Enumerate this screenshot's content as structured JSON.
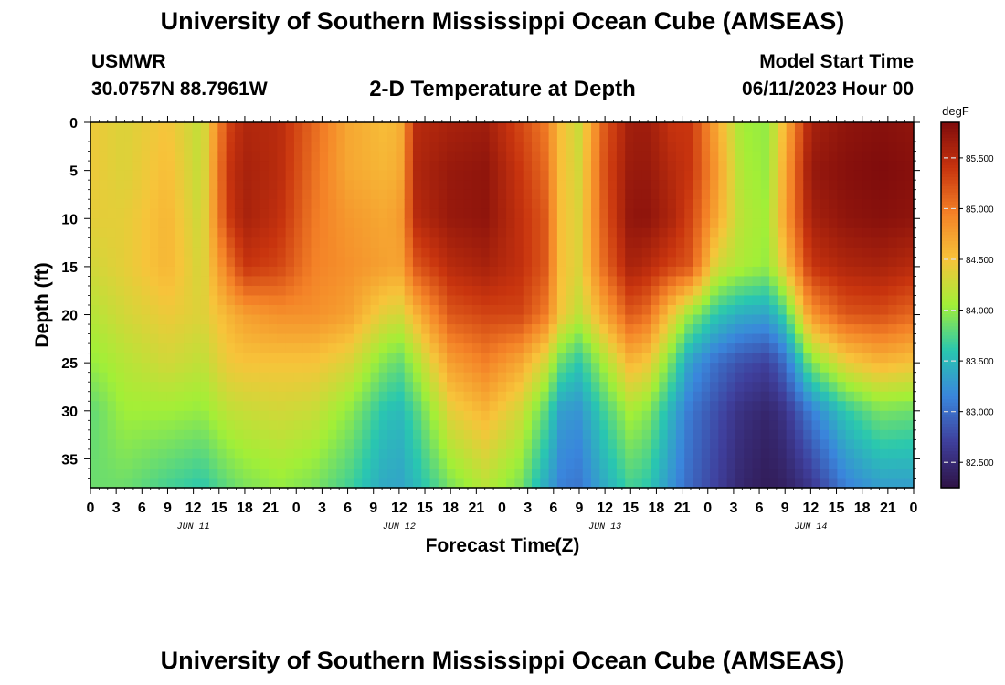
{
  "header": {
    "title": "University of Southern Mississippi Ocean Cube (AMSEAS)",
    "station": "USMWR",
    "coords": "30.0757N  88.7961W",
    "plot_title": "2-D Temperature at Depth",
    "model_start_label": "Model Start Time",
    "model_start_value": "06/11/2023 Hour 00"
  },
  "footer": {
    "title": "University of Southern Mississippi Ocean Cube (AMSEAS)"
  },
  "colors": {
    "colormap": [
      "#2e1245",
      "#3f3f9c",
      "#3a86dc",
      "#29c7b0",
      "#a2ef37",
      "#f7c43a",
      "#f48227",
      "#c8340e",
      "#7f0c0c"
    ]
  },
  "chart_data": {
    "type": "heatmap",
    "xlabel": "Forecast Time(Z)",
    "ylabel": "Depth (ft)",
    "x_tick_labels": [
      "0",
      "3",
      "6",
      "9",
      "12",
      "15",
      "18",
      "21",
      "0",
      "3",
      "6",
      "9",
      "12",
      "15",
      "18",
      "21",
      "0",
      "3",
      "6",
      "9",
      "12",
      "15",
      "18",
      "21",
      "0",
      "3",
      "6",
      "9",
      "12",
      "15",
      "18",
      "21",
      "0"
    ],
    "day_labels": [
      {
        "label": "JUN 11",
        "hour": 12
      },
      {
        "label": "JUN 12",
        "hour": 36
      },
      {
        "label": "JUN 13",
        "hour": 60
      },
      {
        "label": "JUN 14",
        "hour": 84
      }
    ],
    "x_range_hours": [
      0,
      96
    ],
    "y_ticks": [
      0,
      5,
      10,
      15,
      20,
      25,
      30,
      35
    ],
    "y_range_ft": [
      0,
      38
    ],
    "y_inverted": true,
    "colorbar": {
      "unit": "degF",
      "tick_labels": [
        "85.500",
        "85.000",
        "84.500",
        "84.000",
        "83.500",
        "83.000",
        "82.500"
      ],
      "ticks": [
        85.5,
        85.0,
        84.5,
        84.0,
        83.5,
        83.0,
        82.5
      ],
      "range": [
        82.25,
        85.85
      ]
    },
    "profiles": [
      {
        "hour": 0,
        "t": [
          84.45,
          84.45,
          84.4,
          84.3,
          84.15,
          84.0,
          83.8,
          83.85
        ]
      },
      {
        "hour": 4,
        "t": [
          84.35,
          84.35,
          84.4,
          84.4,
          84.3,
          84.15,
          84.05,
          83.85
        ]
      },
      {
        "hour": 9,
        "t": [
          84.5,
          84.55,
          84.6,
          84.6,
          84.45,
          84.3,
          84.05,
          83.7
        ]
      },
      {
        "hour": 13,
        "t": [
          84.2,
          84.2,
          84.25,
          84.3,
          84.35,
          84.2,
          84.0,
          83.6
        ]
      },
      {
        "hour": 16,
        "t": [
          85.3,
          85.4,
          85.35,
          85.0,
          84.6,
          84.45,
          84.2,
          83.8
        ]
      },
      {
        "hour": 18,
        "t": [
          85.55,
          85.6,
          85.6,
          85.4,
          84.75,
          84.5,
          84.25,
          83.9
        ]
      },
      {
        "hour": 22,
        "t": [
          85.5,
          85.5,
          85.45,
          85.3,
          84.85,
          84.5,
          84.3,
          84.0
        ]
      },
      {
        "hour": 26,
        "t": [
          85.1,
          85.05,
          85.0,
          84.95,
          84.85,
          84.5,
          84.25,
          83.9
        ]
      },
      {
        "hour": 30,
        "t": [
          84.7,
          84.7,
          84.8,
          84.85,
          84.75,
          84.35,
          84.0,
          83.7
        ]
      },
      {
        "hour": 34,
        "t": [
          84.55,
          84.6,
          84.7,
          84.75,
          84.4,
          83.95,
          83.6,
          83.4
        ]
      },
      {
        "hour": 36,
        "t": [
          84.6,
          84.65,
          84.75,
          84.7,
          84.3,
          83.8,
          83.5,
          83.35
        ]
      },
      {
        "hour": 38,
        "t": [
          85.5,
          85.55,
          85.5,
          85.2,
          84.6,
          84.1,
          83.75,
          83.5
        ]
      },
      {
        "hour": 42,
        "t": [
          85.6,
          85.7,
          85.7,
          85.5,
          85.2,
          84.75,
          84.4,
          83.9
        ]
      },
      {
        "hour": 46,
        "t": [
          85.65,
          85.75,
          85.75,
          85.6,
          85.3,
          84.95,
          84.6,
          84.15
        ]
      },
      {
        "hour": 50,
        "t": [
          85.3,
          85.4,
          85.45,
          85.45,
          85.3,
          84.7,
          84.3,
          83.9
        ]
      },
      {
        "hour": 53,
        "t": [
          85.0,
          85.1,
          85.2,
          85.2,
          85.0,
          84.3,
          83.8,
          83.4
        ]
      },
      {
        "hour": 55,
        "t": [
          84.5,
          84.5,
          84.5,
          84.5,
          84.45,
          83.8,
          83.3,
          83.1
        ]
      },
      {
        "hour": 57,
        "t": [
          84.25,
          84.3,
          84.35,
          84.35,
          84.2,
          83.6,
          83.25,
          83.05
        ]
      },
      {
        "hour": 60,
        "t": [
          85.2,
          85.25,
          85.2,
          85.1,
          84.7,
          84.1,
          83.7,
          83.4
        ]
      },
      {
        "hour": 63,
        "t": [
          85.65,
          85.7,
          85.75,
          85.6,
          85.2,
          84.6,
          84.1,
          83.7
        ]
      },
      {
        "hour": 65,
        "t": [
          85.65,
          85.7,
          85.75,
          85.5,
          85.05,
          84.45,
          83.95,
          83.6
        ]
      },
      {
        "hour": 68,
        "t": [
          85.4,
          85.5,
          85.55,
          85.3,
          84.4,
          83.8,
          83.4,
          83.2
        ]
      },
      {
        "hour": 70,
        "t": [
          85.4,
          85.4,
          85.3,
          85.2,
          84.0,
          83.3,
          83.05,
          82.95
        ]
      },
      {
        "hour": 73,
        "t": [
          84.7,
          84.8,
          84.7,
          84.3,
          83.6,
          83.0,
          82.8,
          82.7
        ]
      },
      {
        "hour": 76,
        "t": [
          84.05,
          84.1,
          84.15,
          84.1,
          83.4,
          82.8,
          82.55,
          82.45
        ]
      },
      {
        "hour": 79,
        "t": [
          84.0,
          84.0,
          84.05,
          84.0,
          83.35,
          82.7,
          82.45,
          82.35
        ]
      },
      {
        "hour": 81,
        "t": [
          84.6,
          84.7,
          84.75,
          84.5,
          83.7,
          83.0,
          82.6,
          82.4
        ]
      },
      {
        "hour": 84,
        "t": [
          85.6,
          85.7,
          85.6,
          85.4,
          84.8,
          83.9,
          83.1,
          82.6
        ]
      },
      {
        "hour": 88,
        "t": [
          85.75,
          85.8,
          85.75,
          85.55,
          85.2,
          84.4,
          83.6,
          83.1
        ]
      },
      {
        "hour": 92,
        "t": [
          85.8,
          85.85,
          85.8,
          85.6,
          85.25,
          84.6,
          83.9,
          83.3
        ]
      },
      {
        "hour": 96,
        "t": [
          85.75,
          85.8,
          85.75,
          85.5,
          85.1,
          84.5,
          83.85,
          83.3
        ]
      }
    ]
  }
}
